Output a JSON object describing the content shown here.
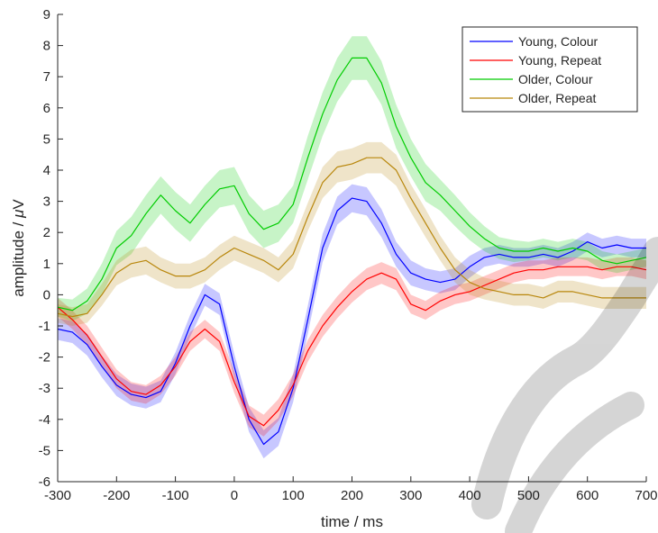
{
  "chart_data": {
    "type": "line",
    "title": "",
    "xlabel": "time / ms",
    "ylabel_prefix": "amplitude / ",
    "ylabel_mu": "μ",
    "ylabel_suffix": "V",
    "xlim": [
      -300,
      700
    ],
    "ylim": [
      -6,
      9
    ],
    "xticks": [
      -300,
      -200,
      -100,
      0,
      100,
      200,
      300,
      400,
      500,
      600,
      700
    ],
    "yticks": [
      -6,
      -5,
      -4,
      -3,
      -2,
      -1,
      0,
      1,
      2,
      3,
      4,
      5,
      6,
      7,
      8,
      9
    ],
    "xtick_labels": [
      "-300",
      "-200",
      "-100",
      "0",
      "100",
      "200",
      "300",
      "400",
      "500",
      "600",
      "700"
    ],
    "ytick_labels": [
      "-6",
      "-5",
      "-4",
      "-3",
      "-2",
      "-1",
      "0",
      "1",
      "2",
      "3",
      "4",
      "5",
      "6",
      "7",
      "8",
      "9"
    ],
    "grid": false,
    "legend_position": "top-right",
    "x": [
      -300,
      -275,
      -250,
      -225,
      -200,
      -175,
      -150,
      -125,
      -100,
      -75,
      -50,
      -25,
      0,
      25,
      50,
      75,
      100,
      125,
      150,
      175,
      200,
      225,
      250,
      275,
      300,
      325,
      350,
      375,
      400,
      425,
      450,
      475,
      500,
      525,
      550,
      575,
      600,
      625,
      650,
      675,
      700
    ],
    "series": [
      {
        "name": "Young, Colour",
        "color": "#0000ff",
        "values": [
          -1.1,
          -1.2,
          -1.6,
          -2.3,
          -2.9,
          -3.2,
          -3.3,
          -3.1,
          -2.2,
          -1.0,
          0.0,
          -0.3,
          -2.3,
          -4.0,
          -4.8,
          -4.4,
          -3.0,
          -0.8,
          1.5,
          2.7,
          3.1,
          3.0,
          2.3,
          1.3,
          0.7,
          0.5,
          0.4,
          0.5,
          0.9,
          1.2,
          1.3,
          1.2,
          1.2,
          1.3,
          1.2,
          1.4,
          1.7,
          1.5,
          1.6,
          1.5,
          1.5
        ],
        "band": [
          0.35,
          0.35,
          0.35,
          0.35,
          0.35,
          0.35,
          0.35,
          0.35,
          0.35,
          0.35,
          0.35,
          0.35,
          0.4,
          0.4,
          0.45,
          0.45,
          0.45,
          0.45,
          0.45,
          0.45,
          0.45,
          0.45,
          0.45,
          0.4,
          0.4,
          0.35,
          0.35,
          0.35,
          0.35,
          0.3,
          0.3,
          0.3,
          0.3,
          0.3,
          0.3,
          0.3,
          0.3,
          0.3,
          0.3,
          0.3,
          0.3
        ]
      },
      {
        "name": "Young, Repeat",
        "color": "#ff0000",
        "values": [
          -0.4,
          -0.8,
          -1.3,
          -2.0,
          -2.7,
          -3.1,
          -3.2,
          -2.9,
          -2.3,
          -1.5,
          -1.1,
          -1.5,
          -2.8,
          -3.9,
          -4.2,
          -3.7,
          -2.9,
          -1.8,
          -1.0,
          -0.4,
          0.1,
          0.5,
          0.7,
          0.5,
          -0.3,
          -0.5,
          -0.2,
          0.0,
          0.1,
          0.3,
          0.5,
          0.7,
          0.8,
          0.8,
          0.9,
          0.9,
          0.9,
          0.8,
          0.9,
          0.9,
          0.8
        ],
        "band": [
          0.3,
          0.3,
          0.3,
          0.3,
          0.3,
          0.3,
          0.3,
          0.3,
          0.3,
          0.3,
          0.3,
          0.3,
          0.35,
          0.35,
          0.35,
          0.35,
          0.35,
          0.35,
          0.35,
          0.35,
          0.35,
          0.35,
          0.35,
          0.35,
          0.3,
          0.3,
          0.3,
          0.3,
          0.3,
          0.3,
          0.3,
          0.3,
          0.3,
          0.3,
          0.3,
          0.3,
          0.3,
          0.3,
          0.3,
          0.3,
          0.3
        ]
      },
      {
        "name": "Older, Colour",
        "color": "#00cc00",
        "values": [
          -0.4,
          -0.5,
          -0.2,
          0.5,
          1.5,
          1.9,
          2.6,
          3.2,
          2.7,
          2.3,
          2.9,
          3.4,
          3.5,
          2.6,
          2.1,
          2.3,
          2.9,
          4.4,
          5.8,
          6.9,
          7.6,
          7.6,
          6.8,
          5.4,
          4.4,
          3.6,
          3.2,
          2.7,
          2.2,
          1.8,
          1.5,
          1.4,
          1.4,
          1.5,
          1.4,
          1.5,
          1.4,
          1.1,
          1.0,
          1.1,
          1.2
        ],
        "band": [
          0.3,
          0.35,
          0.4,
          0.5,
          0.55,
          0.6,
          0.6,
          0.6,
          0.6,
          0.6,
          0.6,
          0.6,
          0.6,
          0.6,
          0.6,
          0.6,
          0.6,
          0.7,
          0.7,
          0.7,
          0.7,
          0.7,
          0.7,
          0.7,
          0.6,
          0.6,
          0.5,
          0.5,
          0.45,
          0.4,
          0.35,
          0.35,
          0.3,
          0.3,
          0.3,
          0.3,
          0.3,
          0.3,
          0.3,
          0.3,
          0.3
        ]
      },
      {
        "name": "Older, Repeat",
        "color": "#b8860b",
        "values": [
          -0.6,
          -0.7,
          -0.6,
          0.0,
          0.7,
          1.0,
          1.1,
          0.8,
          0.6,
          0.6,
          0.8,
          1.2,
          1.5,
          1.3,
          1.1,
          0.8,
          1.3,
          2.5,
          3.6,
          4.1,
          4.2,
          4.4,
          4.4,
          4.0,
          3.1,
          2.3,
          1.5,
          0.8,
          0.4,
          0.2,
          0.1,
          0.0,
          0.0,
          -0.1,
          0.1,
          0.1,
          0.0,
          -0.1,
          -0.1,
          -0.1,
          -0.1
        ],
        "band": [
          0.3,
          0.3,
          0.3,
          0.35,
          0.4,
          0.45,
          0.45,
          0.4,
          0.4,
          0.4,
          0.4,
          0.4,
          0.4,
          0.4,
          0.4,
          0.4,
          0.45,
          0.45,
          0.5,
          0.5,
          0.5,
          0.5,
          0.5,
          0.5,
          0.45,
          0.45,
          0.4,
          0.4,
          0.4,
          0.35,
          0.35,
          0.35,
          0.35,
          0.35,
          0.35,
          0.35,
          0.35,
          0.35,
          0.35,
          0.35,
          0.35
        ]
      }
    ]
  },
  "watermark_text": "manuscript"
}
